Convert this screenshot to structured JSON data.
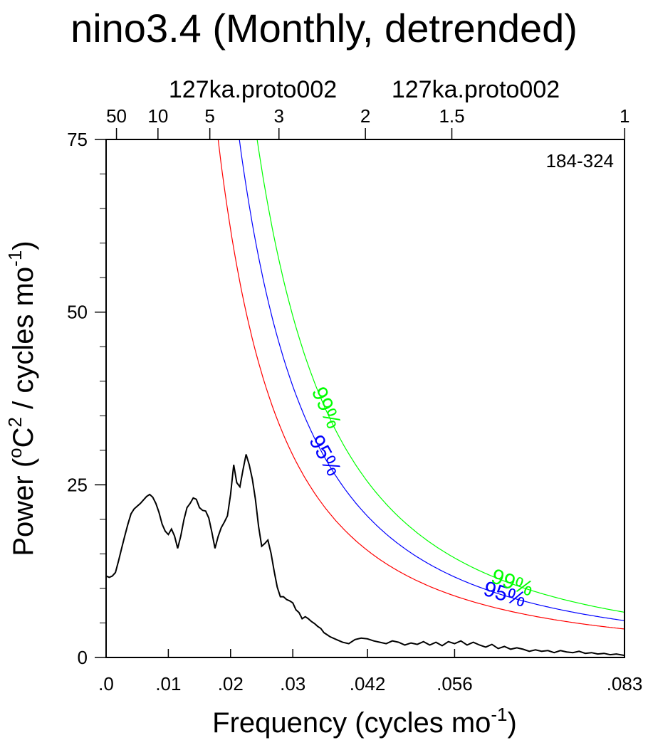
{
  "chart_data": {
    "type": "line",
    "title": "nino3.4 (Monthly, detrended)",
    "subtitle_left": "127ka.proto002",
    "subtitle_right": "127ka.proto002",
    "annotation": "184-324",
    "xlabel": "Frequency (cycles mo",
    "xlabel_sup": "-1",
    "xlabel_end": ")",
    "ylabel": "Power (",
    "ylabel_sup1": "o",
    "ylabel_mid1": "C",
    "ylabel_sup2": "2",
    "ylabel_mid2": " / cycles mo",
    "ylabel_sup3": "-1",
    "ylabel_end": ")",
    "xlim": [
      0,
      0.0833
    ],
    "ylim": [
      0,
      75
    ],
    "grid": false,
    "x_ticks": [
      {
        "value": 0,
        "label": ".0"
      },
      {
        "value": 0.01,
        "label": ".01"
      },
      {
        "value": 0.02,
        "label": ".02"
      },
      {
        "value": 0.03,
        "label": ".03"
      },
      {
        "value": 0.042,
        "label": ".042"
      },
      {
        "value": 0.056,
        "label": ".056"
      },
      {
        "value": 0.0833,
        "label": ".083"
      }
    ],
    "y_ticks": [
      {
        "value": 0,
        "label": "0"
      },
      {
        "value": 25,
        "label": "25"
      },
      {
        "value": 50,
        "label": "50"
      },
      {
        "value": 75,
        "label": "75"
      }
    ],
    "y_minor_step": 5,
    "top_axis_ticks": [
      {
        "period": 50,
        "label": "50"
      },
      {
        "period": 10,
        "label": "10"
      },
      {
        "period": 5,
        "label": "5"
      },
      {
        "period": 3,
        "label": "3"
      },
      {
        "period": 2,
        "label": "2"
      },
      {
        "period": 1.5,
        "label": "1.5"
      },
      {
        "period": 1,
        "label": "1"
      }
    ],
    "series": [
      {
        "color": "#000000",
        "x": [
          0.0,
          0.0005,
          0.001,
          0.0015,
          0.002,
          0.0025,
          0.003,
          0.0035,
          0.004,
          0.0045,
          0.005,
          0.0055,
          0.006,
          0.0065,
          0.007,
          0.0075,
          0.008,
          0.0085,
          0.009,
          0.0095,
          0.01,
          0.0105,
          0.011,
          0.0115,
          0.012,
          0.0125,
          0.013,
          0.0135,
          0.014,
          0.0145,
          0.015,
          0.0155,
          0.016,
          0.0165,
          0.017,
          0.0175,
          0.018,
          0.0185,
          0.019,
          0.0195,
          0.02,
          0.0205,
          0.021,
          0.0215,
          0.022,
          0.0225,
          0.023,
          0.0235,
          0.024,
          0.0245,
          0.025,
          0.0255,
          0.026,
          0.0265,
          0.027,
          0.0275,
          0.028,
          0.0285,
          0.029,
          0.0295,
          0.03,
          0.0305,
          0.031,
          0.0315,
          0.032,
          0.0325,
          0.033,
          0.0335,
          0.034,
          0.0345,
          0.035,
          0.0355,
          0.036,
          0.037,
          0.038,
          0.039,
          0.04,
          0.041,
          0.042,
          0.043,
          0.044,
          0.045,
          0.046,
          0.047,
          0.048,
          0.049,
          0.05,
          0.051,
          0.052,
          0.053,
          0.054,
          0.055,
          0.056,
          0.057,
          0.058,
          0.059,
          0.06,
          0.061,
          0.062,
          0.063,
          0.064,
          0.065,
          0.066,
          0.067,
          0.068,
          0.069,
          0.07,
          0.071,
          0.072,
          0.073,
          0.074,
          0.075,
          0.076,
          0.077,
          0.078,
          0.079,
          0.08,
          0.081,
          0.082,
          0.0833
        ],
        "y": [
          11.8,
          11.6,
          11.8,
          12.3,
          14.0,
          15.8,
          17.6,
          19.3,
          20.8,
          21.5,
          21.9,
          22.3,
          22.8,
          23.3,
          23.6,
          23.2,
          22.3,
          21.0,
          19.3,
          18.3,
          17.8,
          18.6,
          17.6,
          15.8,
          17.6,
          19.9,
          21.7,
          22.3,
          23.1,
          22.9,
          21.7,
          21.3,
          21.2,
          20.2,
          18.1,
          15.8,
          17.5,
          18.8,
          19.6,
          20.5,
          23.6,
          27.9,
          25.3,
          24.7,
          27.2,
          29.4,
          27.9,
          25.8,
          22.9,
          19.0,
          16.1,
          16.5,
          17.0,
          15.1,
          12.5,
          10.2,
          8.8,
          8.8,
          8.4,
          8.2,
          7.9,
          6.9,
          6.5,
          5.6,
          5.9,
          5.6,
          5.2,
          4.9,
          4.5,
          4.2,
          3.6,
          3.3,
          3.0,
          2.6,
          2.2,
          2.0,
          2.6,
          2.8,
          2.7,
          2.4,
          2.2,
          2.0,
          2.4,
          2.2,
          1.8,
          2.1,
          1.9,
          2.3,
          1.8,
          2.2,
          1.7,
          2.3,
          2.0,
          2.4,
          1.8,
          2.2,
          1.8,
          1.5,
          1.9,
          1.3,
          1.6,
          1.2,
          1.4,
          1.2,
          0.9,
          1.1,
          0.9,
          1.0,
          0.7,
          1.0,
          0.8,
          0.7,
          0.9,
          0.6,
          0.7,
          0.5,
          0.6,
          0.4,
          0.5,
          0.3
        ]
      },
      {
        "color": "#ff0000",
        "formula": "a/(x+b)^2",
        "params": {
          "a": 0.03,
          "b": 0.002
        }
      },
      {
        "color": "#0000ff",
        "formula": "a/(x+b)^2",
        "params": {
          "a": 0.038,
          "b": 0.0011
        },
        "label": "95%",
        "label_positions": [
          0.0072,
          0.012,
          0.035,
          0.064
        ]
      },
      {
        "color": "#00ff00",
        "formula": "a/(x+b)^2",
        "params": {
          "a": 0.046,
          "b": 0.0005
        },
        "label": "99%",
        "label_positions": [
          0.008,
          0.0128,
          0.0352,
          0.0652
        ]
      }
    ]
  }
}
